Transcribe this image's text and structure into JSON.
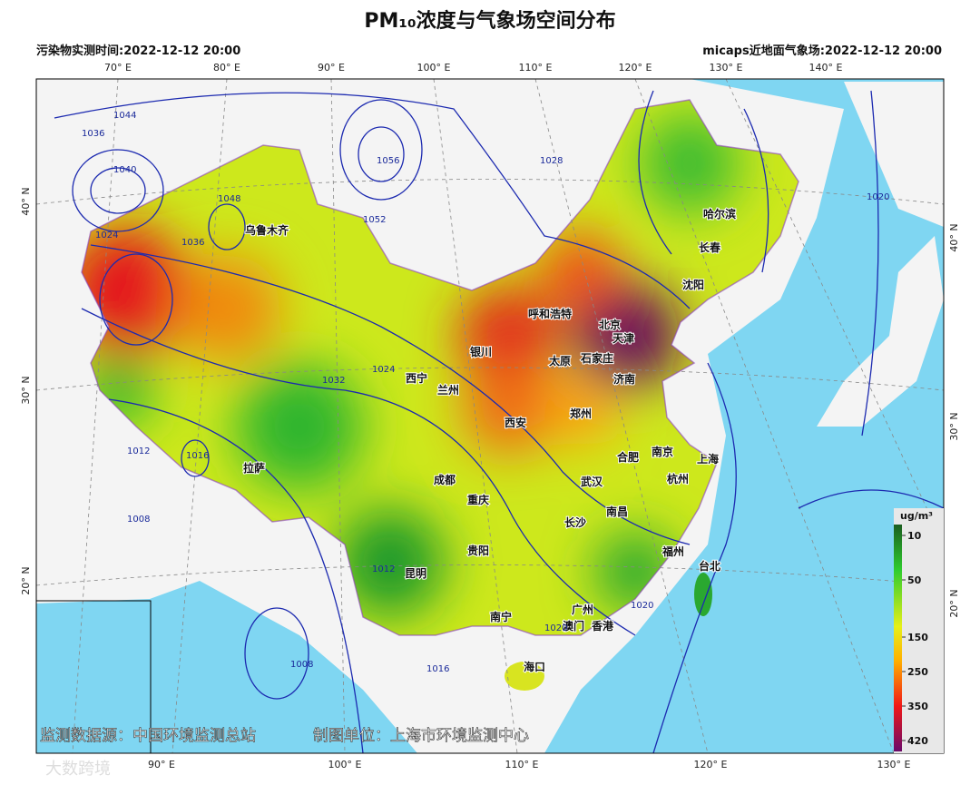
{
  "header": {
    "title": "PM₁₀浓度与气象场空间分布",
    "left_note": "污染物实测时间:2022-12-12 20:00",
    "right_note": "micaps近地面气象场:2022-12-12 20:00"
  },
  "axes": {
    "top": [
      "70° E",
      "80° E",
      "90° E",
      "100° E",
      "110° E",
      "120° E",
      "130° E",
      "140° E"
    ],
    "bottom": [
      "90° E",
      "100° E",
      "110° E",
      "120° E",
      "130° E"
    ],
    "left": [
      "40° N",
      "30° N",
      "20° N"
    ],
    "right": [
      "40° N",
      "30° N",
      "20° N"
    ]
  },
  "cities": [
    "乌鲁木齐",
    "哈尔滨",
    "长春",
    "沈阳",
    "呼和浩特",
    "北京",
    "天津",
    "银川",
    "太原",
    "石家庄",
    "西宁",
    "兰州",
    "济南",
    "西安",
    "郑州",
    "拉萨",
    "成都",
    "合肥",
    "南京",
    "上海",
    "武汉",
    "杭州",
    "重庆",
    "南昌",
    "长沙",
    "贵阳",
    "福州",
    "台北",
    "昆明",
    "南宁",
    "广州",
    "澳门",
    "香港",
    "海口"
  ],
  "isobar_labels": [
    "1044",
    "1036",
    "1040",
    "1048",
    "1052",
    "1056",
    "1024",
    "1036",
    "1032",
    "1028",
    "1016",
    "1012",
    "1008",
    "1020",
    "1024",
    "1016",
    "1012",
    "1008",
    "1020",
    "1020"
  ],
  "legend": {
    "unit": "ug/m³",
    "ticks": [
      "10",
      "50",
      "150",
      "250",
      "350",
      "420"
    ]
  },
  "footer": {
    "source": "监测数据源：中国环境监测总站",
    "maker": "制图单位：上海市环境监测中心",
    "watermark": "大数跨境"
  }
}
